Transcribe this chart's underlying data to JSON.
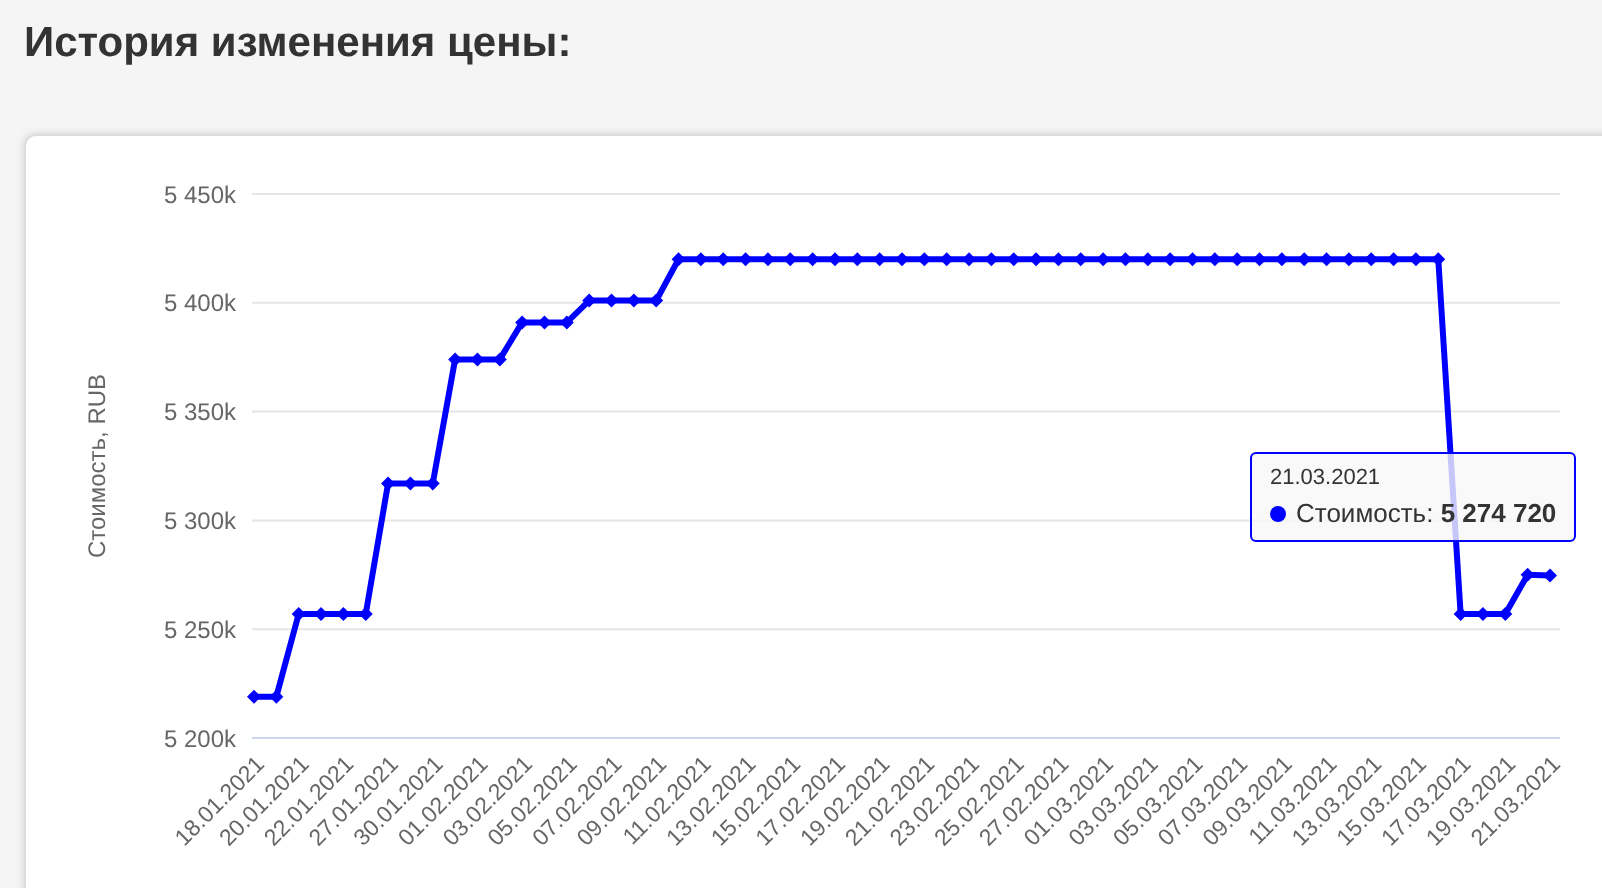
{
  "chart_data": {
    "type": "line",
    "title": "История изменения цены:",
    "ylabel": "Стоимость, RUB",
    "categories": [
      "18.01.2021",
      null,
      "20.01.2021",
      null,
      "22.01.2021",
      null,
      "27.01.2021",
      null,
      "30.01.2021",
      null,
      "01.02.2021",
      null,
      "03.02.2021",
      null,
      "05.02.2021",
      null,
      "07.02.2021",
      null,
      "09.02.2021",
      null,
      "11.02.2021",
      null,
      "13.02.2021",
      null,
      "15.02.2021",
      null,
      "17.02.2021",
      null,
      "19.02.2021",
      null,
      "21.02.2021",
      null,
      "23.02.2021",
      null,
      "25.02.2021",
      null,
      "27.02.2021",
      null,
      "01.03.2021",
      null,
      "03.03.2021",
      null,
      "05.03.2021",
      null,
      "07.03.2021",
      null,
      "09.03.2021",
      null,
      "11.03.2021",
      null,
      "13.03.2021",
      null,
      "15.03.2021",
      null,
      "17.03.2021",
      null,
      "19.03.2021",
      null,
      "21.03.2021"
    ],
    "series": [
      {
        "name": "Стоимость:",
        "color": "#0000ff",
        "values": [
          5219000,
          5219000,
          5257000,
          5257000,
          5257000,
          5257000,
          5317000,
          5317000,
          5317000,
          5374000,
          5374000,
          5374000,
          5391000,
          5391000,
          5391000,
          5401000,
          5401000,
          5401000,
          5401000,
          5420000,
          5420000,
          5420000,
          5420000,
          5420000,
          5420000,
          5420000,
          5420000,
          5420000,
          5420000,
          5420000,
          5420000,
          5420000,
          5420000,
          5420000,
          5420000,
          5420000,
          5420000,
          5420000,
          5420000,
          5420000,
          5420000,
          5420000,
          5420000,
          5420000,
          5420000,
          5420000,
          5420000,
          5420000,
          5420000,
          5420000,
          5420000,
          5420000,
          5420000,
          5420000,
          5257000,
          5257000,
          5257000,
          5275000,
          5274720
        ]
      }
    ],
    "ylim": [
      5200000,
      5450000
    ],
    "yticks": [
      {
        "value": 5200000,
        "label": "5 200k"
      },
      {
        "value": 5250000,
        "label": "5 250k"
      },
      {
        "value": 5300000,
        "label": "5 300k"
      },
      {
        "value": 5350000,
        "label": "5 350k"
      },
      {
        "value": 5400000,
        "label": "5 400k"
      },
      {
        "value": 5450000,
        "label": "5 450k"
      }
    ],
    "annotations": [
      "21.03.2021",
      "5 274 720"
    ],
    "grid": "y",
    "legend": "right",
    "marker": "diamond",
    "line_style": "solid"
  }
}
